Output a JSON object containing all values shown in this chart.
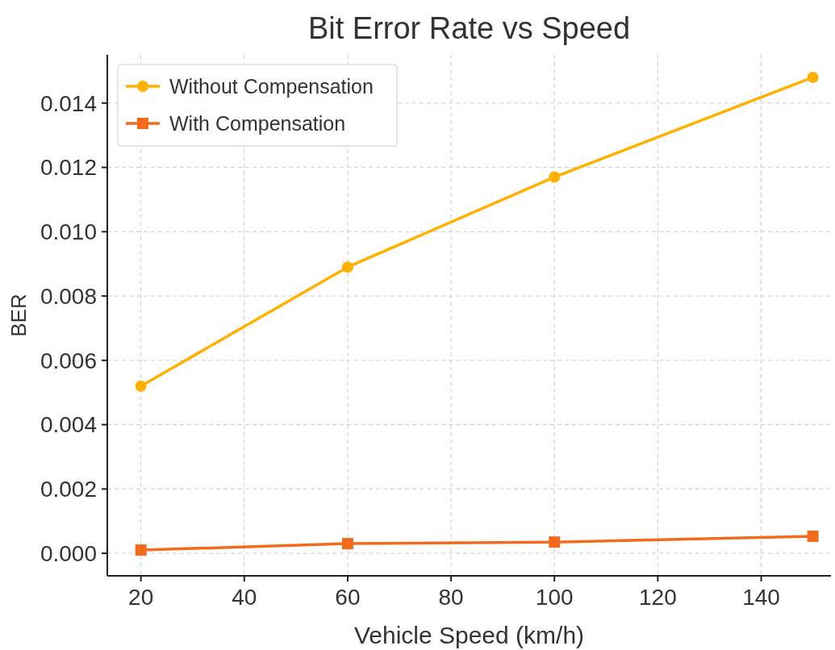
{
  "chart_data": {
    "type": "line",
    "title": "Bit Error Rate vs Speed",
    "xlabel": "Vehicle Speed (km/h)",
    "ylabel": "BER",
    "x": [
      20,
      60,
      100,
      150
    ],
    "series": [
      {
        "name": "Without Compensation",
        "color": "#ffb000",
        "marker": "circle",
        "values": [
          0.0052,
          0.0089,
          0.0117,
          0.0148
        ]
      },
      {
        "name": "With Compensation",
        "color": "#f26b1d",
        "marker": "square",
        "values": [
          0.0001,
          0.0003,
          0.00035,
          0.00053
        ]
      }
    ],
    "xlim": [
      13.5,
      153.5
    ],
    "xticks": [
      20,
      40,
      60,
      80,
      100,
      120,
      140
    ],
    "ylim": [
      -0.0007,
      0.0155
    ],
    "yticks": [
      {
        "value": 0,
        "label": "0.000"
      },
      {
        "value": 0.002,
        "label": "0.002"
      },
      {
        "value": 0.004,
        "label": "0.004"
      },
      {
        "value": 0.006,
        "label": "0.006"
      },
      {
        "value": 0.008,
        "label": "0.008"
      },
      {
        "value": 0.01,
        "label": "0.010"
      },
      {
        "value": 0.012,
        "label": "0.012"
      },
      {
        "value": 0.014,
        "label": "0.014"
      }
    ],
    "grid": true,
    "legend": "top left",
    "line_style": "solid"
  }
}
